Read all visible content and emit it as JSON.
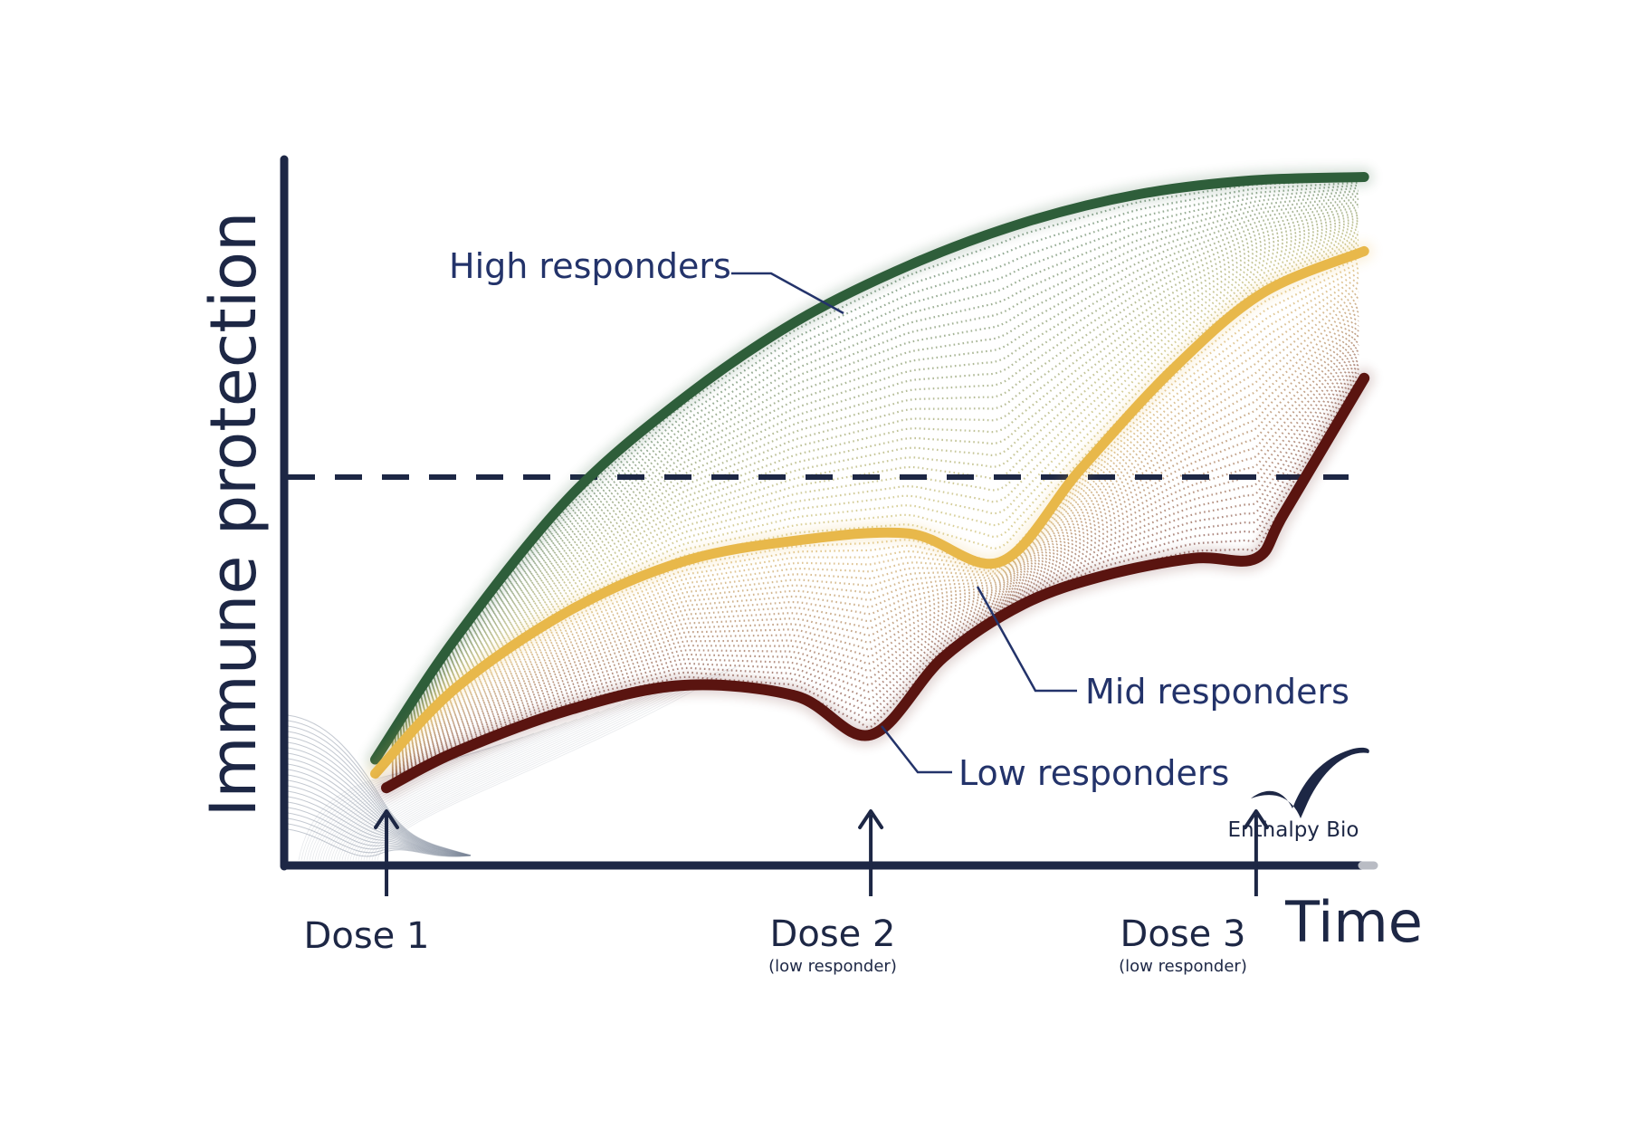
{
  "chart_data": {
    "type": "line",
    "title": "",
    "xlabel": "Time",
    "ylabel": "Immune protection",
    "xlim": [
      0,
      100
    ],
    "ylim": [
      0,
      100
    ],
    "threshold": {
      "value": 55,
      "style": "dashed"
    },
    "grid": false,
    "legend": "inline-labels",
    "series": [
      {
        "name": "High responders",
        "color": "#2e5e3a",
        "x": [
          8,
          15,
          25,
          35,
          45,
          55,
          65,
          75,
          85,
          95
        ],
        "y": [
          15,
          32,
          52,
          66,
          77,
          85,
          91,
          95,
          97,
          97.5
        ]
      },
      {
        "name": "Mid responders",
        "color": "#e8b84a",
        "x": [
          8,
          15,
          25,
          35,
          45,
          55,
          63,
          70,
          78,
          86,
          95
        ],
        "y": [
          13,
          25,
          36,
          43,
          46,
          47,
          43,
          56,
          70,
          81,
          87
        ]
      },
      {
        "name": "Low responders",
        "color": "#5a1410",
        "x": [
          9,
          15,
          25,
          35,
          45,
          51.6,
          58,
          65,
          72,
          80,
          85.5,
          88,
          95
        ],
        "y": [
          11,
          16,
          22,
          25.5,
          24,
          18.5,
          29.5,
          37,
          41,
          43.5,
          43.5,
          50,
          69
        ]
      }
    ],
    "doses": [
      {
        "label": "Dose 1",
        "sublabel": "",
        "x": 9
      },
      {
        "label": "Dose 2",
        "sublabel": "(low responder)",
        "x": 51.6
      },
      {
        "label": "Dose 3",
        "sublabel": "(low responder)",
        "x": 85.5
      }
    ]
  },
  "logo": {
    "text": "Enthalpy Bio"
  }
}
